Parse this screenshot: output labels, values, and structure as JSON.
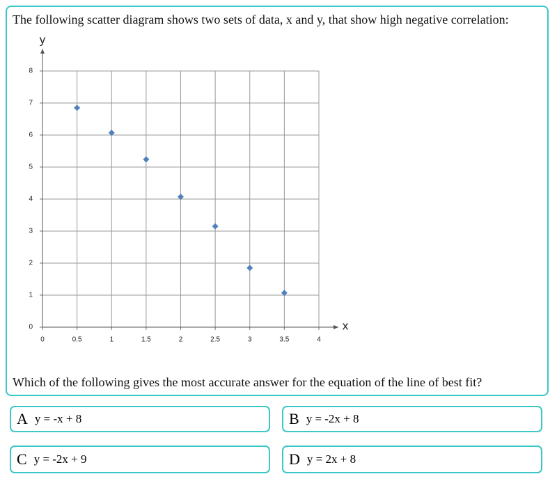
{
  "question": "The following scatter diagram shows two sets of data, x and y, that show high negative correlation:",
  "chart_data": {
    "type": "scatter",
    "x_label": "x",
    "y_label": "y",
    "x": [
      0.5,
      1,
      1.5,
      2,
      2.5,
      3,
      3.5
    ],
    "series": [
      {
        "name": null,
        "color": "#4f81bd",
        "values": [
          6.85,
          6.07,
          5.24,
          4.07,
          3.15,
          1.85,
          1.07
        ]
      }
    ],
    "xlim": [
      0,
      4
    ],
    "ylim": [
      0,
      8
    ],
    "xticks": [
      0,
      0.5,
      1,
      1.5,
      2,
      2.5,
      3,
      3.5,
      4
    ],
    "yticks": [
      0,
      1,
      2,
      3,
      4,
      5,
      6,
      7,
      8
    ],
    "grid": true
  },
  "prompt": "Which of the following gives the most accurate answer for the equation of the line of best fit?",
  "options": [
    {
      "letter": "A",
      "text": "y = -x + 8"
    },
    {
      "letter": "B",
      "text": "y = -2x + 8"
    },
    {
      "letter": "C",
      "text": "y = -2x + 9"
    },
    {
      "letter": "D",
      "text": "y = 2x + 8"
    }
  ]
}
